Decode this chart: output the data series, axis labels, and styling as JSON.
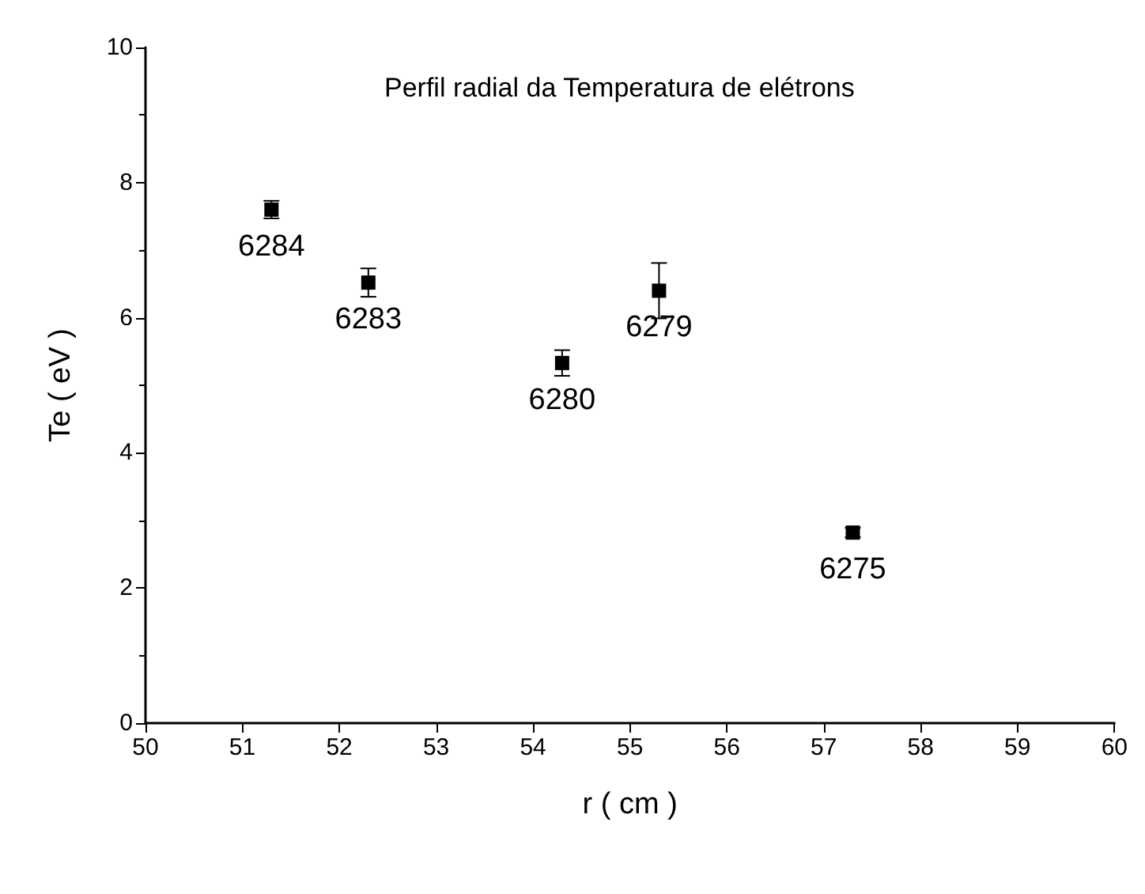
{
  "chart_data": {
    "type": "scatter",
    "title": "Perfil radial da Temperatura de elétrons",
    "xlabel": "r ( cm )",
    "ylabel": "Te ( eV )",
    "x": [
      51.3,
      52.3,
      54.3,
      55.3,
      57.3
    ],
    "values": [
      7.6,
      6.52,
      5.33,
      6.4,
      2.82
    ],
    "errors": [
      0.13,
      0.21,
      0.19,
      0.41,
      0.07
    ],
    "color": "#000000",
    "marker": "square",
    "annotations": [
      {
        "text": "6284",
        "x": 51.3,
        "y": 7.6
      },
      {
        "text": "6283",
        "x": 52.3,
        "y": 6.52
      },
      {
        "text": "6280",
        "x": 54.3,
        "y": 5.33
      },
      {
        "text": "6279",
        "x": 55.3,
        "y": 6.4
      },
      {
        "text": "6275",
        "x": 57.3,
        "y": 2.82
      }
    ],
    "xlim": [
      50,
      60
    ],
    "xticks": [
      50,
      51,
      52,
      53,
      54,
      55,
      56,
      57,
      58,
      59,
      60
    ],
    "ylim": [
      0,
      10
    ],
    "yticks": [
      0,
      2,
      4,
      6,
      8,
      10
    ],
    "grid": false
  }
}
